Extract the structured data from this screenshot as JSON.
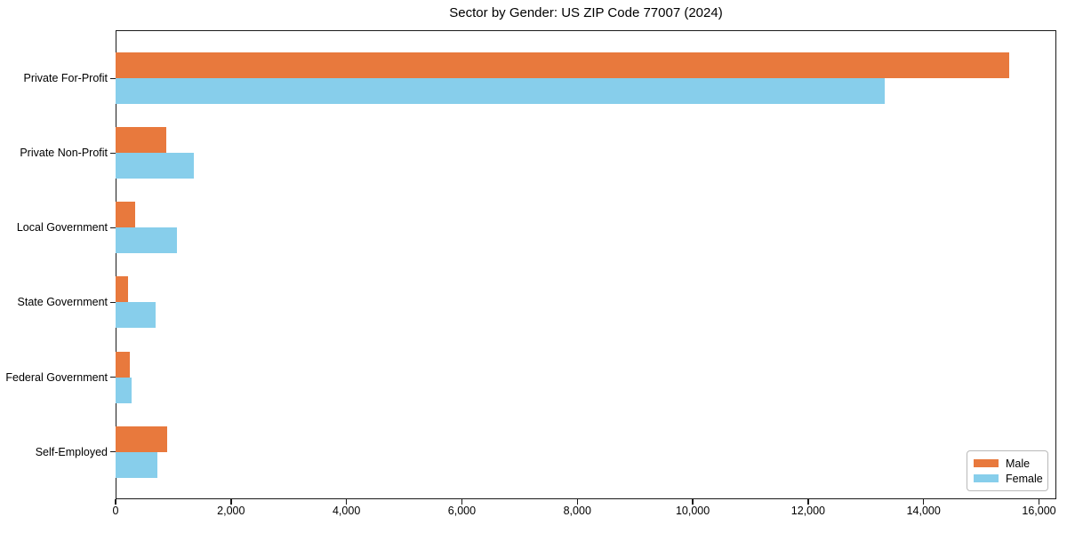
{
  "title": "Sector by Gender: US ZIP Code 77007 (2024)",
  "chart_data": {
    "type": "bar",
    "orientation": "horizontal",
    "title": "Sector by Gender: US ZIP Code 77007 (2024)",
    "xlabel": "",
    "ylabel": "",
    "grid": false,
    "legend_position": "lower right",
    "categories": [
      "Private For-Profit",
      "Private Non-Profit",
      "Local Government",
      "State Government",
      "Federal Government",
      "Self-Employed"
    ],
    "series": [
      {
        "name": "Male",
        "color": "#E8793D",
        "values": [
          15490,
          875,
          335,
          215,
          240,
          890
        ]
      },
      {
        "name": "Female",
        "color": "#87CEEB",
        "values": [
          13330,
          1350,
          1065,
          695,
          285,
          720
        ]
      }
    ],
    "xlim": [
      0,
      16300
    ],
    "xticks": [
      0,
      2000,
      4000,
      6000,
      8000,
      10000,
      12000,
      14000,
      16000
    ],
    "xtick_labels": [
      "0",
      "2,000",
      "4,000",
      "6,000",
      "8,000",
      "10,000",
      "12,000",
      "14,000",
      "16,000"
    ]
  },
  "legend": {
    "items": [
      {
        "label": "Male",
        "color": "#E8793D"
      },
      {
        "label": "Female",
        "color": "#87CEEB"
      }
    ]
  }
}
